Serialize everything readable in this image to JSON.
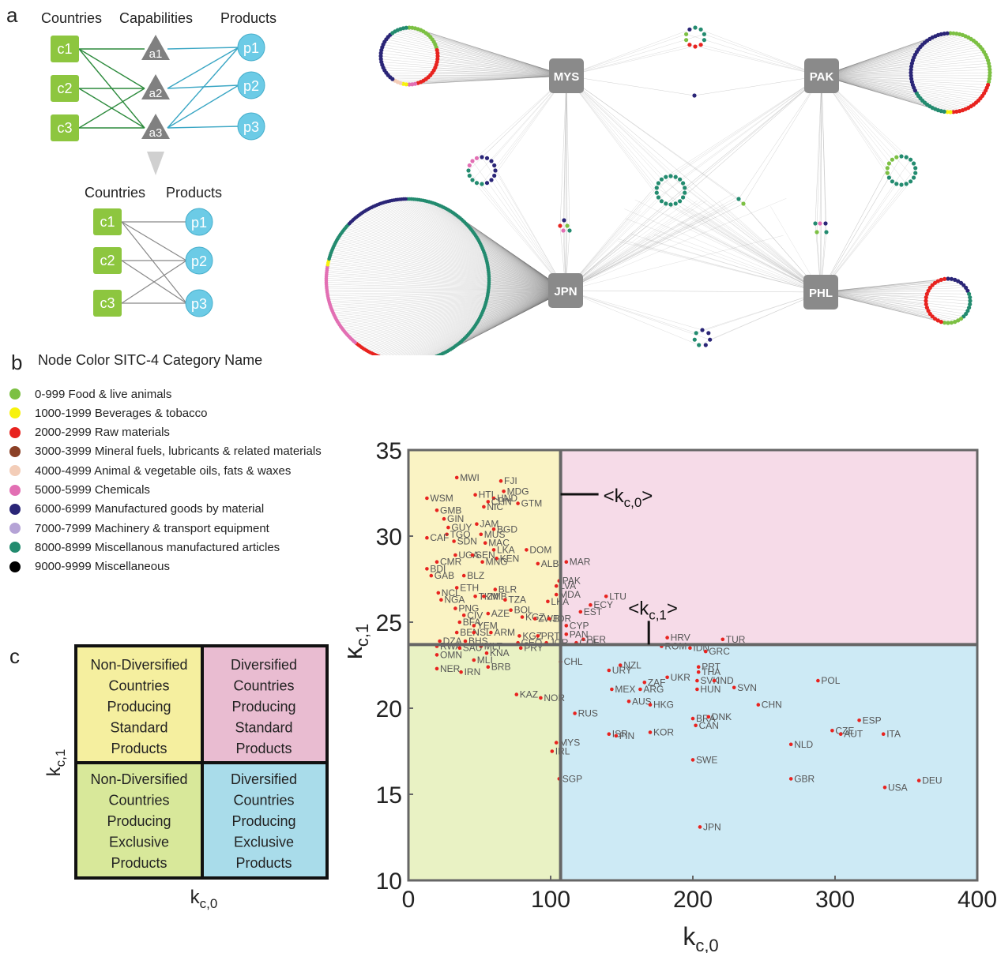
{
  "panel_a": {
    "letter": "a",
    "top_headers": [
      "Countries",
      "Capabilities",
      "Products"
    ],
    "bottom_headers": [
      "Countries",
      "Products"
    ],
    "countries": [
      "c1",
      "c2",
      "c3"
    ],
    "capabilities": [
      "a1",
      "a2",
      "a3"
    ],
    "products": [
      "p1",
      "p2",
      "p3"
    ],
    "country_color": "#8dc63f",
    "capability_color": "#808080",
    "product_color": "#6ccbe6",
    "network_labels": [
      "MYS",
      "PAK",
      "JPN",
      "PHL"
    ]
  },
  "panel_b": {
    "letter": "b",
    "legend_title": "Node Color  SITC-4 Category Name",
    "legend": [
      {
        "color": "#7cc043",
        "label": "0-999 Food & live animals"
      },
      {
        "color": "#f7f20c",
        "label": "1000-1999 Beverages &  tobacco"
      },
      {
        "color": "#e8231f",
        "label": "2000-2999 Raw materials"
      },
      {
        "color": "#8b4026",
        "label": "3000-3999 Mineral fuels, lubricants & related materials"
      },
      {
        "color": "#f3cdb8",
        "label": "4000-4999 Animal & vegetable oils, fats & waxes"
      },
      {
        "color": "#e26fb3",
        "label": "5000-5999 Chemicals"
      },
      {
        "color": "#2a2577",
        "label": "6000-6999 Manufactured goods by material"
      },
      {
        "color": "#b5a3d6",
        "label": "7000-7999 Machinery & transport equipment"
      },
      {
        "color": "#238b6f",
        "label": "8000-8999 Miscellanous manufactured articles"
      },
      {
        "color": "#000000",
        "label": "9000-9999 Miscellaneous"
      }
    ]
  },
  "panel_c": {
    "letter": "c",
    "quadrants": {
      "top_left": [
        "Non-Diversified",
        "Countries",
        "Producing",
        "Standard",
        "Products"
      ],
      "top_right": [
        "Diversified",
        "Countries",
        "Producing",
        "Standard",
        "Products"
      ],
      "bottom_left": [
        "Non-Diversified",
        "Countries",
        "Producing",
        "Exclusive",
        "Products"
      ],
      "bottom_right": [
        "Diversified",
        "Countries",
        "Producing",
        "Exclusive",
        "Products"
      ]
    },
    "colors": {
      "top_left": "#f5ef9f",
      "top_right": "#e9bcd1",
      "bottom_left": "#d8e89a",
      "bottom_right": "#a9dcea"
    },
    "xlabel": "kc,0",
    "ylabel": "kc,1"
  },
  "chart_data": {
    "type": "scatter",
    "xlabel": "kc,0",
    "ylabel": "kc,1",
    "xlim": [
      0,
      400
    ],
    "ylim": [
      10,
      35
    ],
    "xticks": [
      0,
      100,
      200,
      300,
      400
    ],
    "yticks": [
      10,
      15,
      20,
      25,
      30,
      35
    ],
    "mean_kc0": 107,
    "mean_kc1": 23.7,
    "mean_kc0_label": "<kc,0>",
    "mean_kc1_label": "<kc,1>",
    "point_color": "#e8231f",
    "region_colors": {
      "top_left": "#faf3c4",
      "top_right": "#f6dbe8",
      "bottom_left": "#e9f2c4",
      "bottom_right": "#cdeaf5"
    },
    "points": [
      {
        "label": "MWI",
        "x": 34,
        "y": 33.4
      },
      {
        "label": "FJI",
        "x": 65,
        "y": 33.2
      },
      {
        "label": "MDG",
        "x": 67,
        "y": 32.6
      },
      {
        "label": "HTI",
        "x": 47,
        "y": 32.4
      },
      {
        "label": "HND",
        "x": 60,
        "y": 32.2
      },
      {
        "label": "WSM",
        "x": 13,
        "y": 32.2
      },
      {
        "label": "CHN",
        "x": 56,
        "y": 32.0
      },
      {
        "label": "GTM",
        "x": 77,
        "y": 31.9
      },
      {
        "label": "NIC",
        "x": 53,
        "y": 31.7
      },
      {
        "label": "GMB",
        "x": 20,
        "y": 31.5
      },
      {
        "label": "GIN",
        "x": 25,
        "y": 31.0
      },
      {
        "label": "JAM",
        "x": 48,
        "y": 30.7
      },
      {
        "label": "GUY",
        "x": 28,
        "y": 30.5
      },
      {
        "label": "BGD",
        "x": 60,
        "y": 30.4
      },
      {
        "label": "TGO",
        "x": 27,
        "y": 30.1
      },
      {
        "label": "MUS",
        "x": 51,
        "y": 30.1
      },
      {
        "label": "CAF",
        "x": 13,
        "y": 29.9
      },
      {
        "label": "SDN",
        "x": 32,
        "y": 29.7
      },
      {
        "label": "MAC",
        "x": 54,
        "y": 29.6
      },
      {
        "label": "LKA",
        "x": 60,
        "y": 29.2
      },
      {
        "label": "DOM",
        "x": 83,
        "y": 29.2
      },
      {
        "label": "UGA",
        "x": 33,
        "y": 28.9
      },
      {
        "label": "SEN",
        "x": 45,
        "y": 28.9
      },
      {
        "label": "KEN",
        "x": 62,
        "y": 28.7
      },
      {
        "label": "CMR",
        "x": 20,
        "y": 28.5
      },
      {
        "label": "MNG",
        "x": 52,
        "y": 28.5
      },
      {
        "label": "ALB",
        "x": 91,
        "y": 28.4
      },
      {
        "label": "MAR",
        "x": 111,
        "y": 28.5
      },
      {
        "label": "BDI",
        "x": 13,
        "y": 28.1
      },
      {
        "label": "GAB",
        "x": 16,
        "y": 27.7
      },
      {
        "label": "BLZ",
        "x": 39,
        "y": 27.7
      },
      {
        "label": "PAK",
        "x": 106,
        "y": 27.4
      },
      {
        "label": "LVA",
        "x": 104,
        "y": 27.1
      },
      {
        "label": "ETH",
        "x": 34,
        "y": 27.0
      },
      {
        "label": "BLR",
        "x": 61,
        "y": 26.9
      },
      {
        "label": "NCL",
        "x": 21,
        "y": 26.7
      },
      {
        "label": "TKM",
        "x": 47,
        "y": 26.5
      },
      {
        "label": "ZMB",
        "x": 53,
        "y": 26.5
      },
      {
        "label": "MDA",
        "x": 104,
        "y": 26.6
      },
      {
        "label": "LTU",
        "x": 139,
        "y": 26.5
      },
      {
        "label": "NGA",
        "x": 23,
        "y": 26.3
      },
      {
        "label": "TZA",
        "x": 68,
        "y": 26.3
      },
      {
        "label": "LKA",
        "x": 98,
        "y": 26.2
      },
      {
        "label": "ECY",
        "x": 128,
        "y": 26.0
      },
      {
        "label": "PNG",
        "x": 33,
        "y": 25.8
      },
      {
        "label": "BOL",
        "x": 72,
        "y": 25.7
      },
      {
        "label": "EST",
        "x": 121,
        "y": 25.6
      },
      {
        "label": "AZE",
        "x": 56,
        "y": 25.5
      },
      {
        "label": "CIV",
        "x": 39,
        "y": 25.4
      },
      {
        "label": "KGZ",
        "x": 80,
        "y": 25.3
      },
      {
        "label": "ZWE",
        "x": 89,
        "y": 25.2
      },
      {
        "label": "JOR",
        "x": 99,
        "y": 25.2
      },
      {
        "label": "BFA",
        "x": 36,
        "y": 25.0
      },
      {
        "label": "CYP",
        "x": 111,
        "y": 24.8
      },
      {
        "label": "YEM",
        "x": 46,
        "y": 24.8
      },
      {
        "label": "BEN",
        "x": 34,
        "y": 24.4
      },
      {
        "label": "ISL",
        "x": 46,
        "y": 24.4
      },
      {
        "label": "ARM",
        "x": 58,
        "y": 24.4
      },
      {
        "label": "PAN",
        "x": 111,
        "y": 24.3
      },
      {
        "label": "KGZ",
        "x": 78,
        "y": 24.2
      },
      {
        "label": "PRT",
        "x": 91,
        "y": 24.2
      },
      {
        "label": "DZA",
        "x": 22,
        "y": 23.9
      },
      {
        "label": "BHS",
        "x": 40,
        "y": 23.9
      },
      {
        "label": "GEO",
        "x": 77,
        "y": 23.8
      },
      {
        "label": "JOR",
        "x": 97,
        "y": 23.8
      },
      {
        "label": "PER",
        "x": 123,
        "y": 24.0
      },
      {
        "label": "HRV",
        "x": 182,
        "y": 24.1
      },
      {
        "label": "TUR",
        "x": 221,
        "y": 24.0
      },
      {
        "label": "COL",
        "x": 118,
        "y": 23.8
      },
      {
        "label": "MLT",
        "x": 51,
        "y": 23.6
      },
      {
        "label": "PRY",
        "x": 79,
        "y": 23.5
      },
      {
        "label": "ROM",
        "x": 178,
        "y": 23.6
      },
      {
        "label": "IDN",
        "x": 198,
        "y": 23.5
      },
      {
        "label": "GRC",
        "x": 209,
        "y": 23.3
      },
      {
        "label": "RWA",
        "x": 20,
        "y": 23.6
      },
      {
        "label": "SAU",
        "x": 36,
        "y": 23.5
      },
      {
        "label": "OMN",
        "x": 20,
        "y": 23.1
      },
      {
        "label": "KNA",
        "x": 55,
        "y": 23.2
      },
      {
        "label": "MLI",
        "x": 46,
        "y": 22.8
      },
      {
        "label": "CHL",
        "x": 107,
        "y": 22.7
      },
      {
        "label": "NER",
        "x": 20,
        "y": 22.3
      },
      {
        "label": "IRN",
        "x": 37,
        "y": 22.1
      },
      {
        "label": "BRB",
        "x": 56,
        "y": 22.4
      },
      {
        "label": "NZL",
        "x": 149,
        "y": 22.5
      },
      {
        "label": "PRT",
        "x": 204,
        "y": 22.4
      },
      {
        "label": "THA",
        "x": 204,
        "y": 22.1
      },
      {
        "label": "URY",
        "x": 141,
        "y": 22.2
      },
      {
        "label": "UKR",
        "x": 182,
        "y": 21.8
      },
      {
        "label": "ZAF",
        "x": 166,
        "y": 21.5
      },
      {
        "label": "SVK",
        "x": 203,
        "y": 21.6
      },
      {
        "label": "IND",
        "x": 215,
        "y": 21.6
      },
      {
        "label": "POL",
        "x": 288,
        "y": 21.6
      },
      {
        "label": "MEX",
        "x": 143,
        "y": 21.1
      },
      {
        "label": "ARG",
        "x": 163,
        "y": 21.1
      },
      {
        "label": "HUN",
        "x": 203,
        "y": 21.1
      },
      {
        "label": "SVN",
        "x": 229,
        "y": 21.2
      },
      {
        "label": "KAZ",
        "x": 76,
        "y": 20.8
      },
      {
        "label": "NOR",
        "x": 93,
        "y": 20.6
      },
      {
        "label": "AUS",
        "x": 155,
        "y": 20.4
      },
      {
        "label": "HKG",
        "x": 170,
        "y": 20.2
      },
      {
        "label": "CHN",
        "x": 246,
        "y": 20.2
      },
      {
        "label": "RUS",
        "x": 117,
        "y": 19.7
      },
      {
        "label": "BRA",
        "x": 200,
        "y": 19.4
      },
      {
        "label": "DNK",
        "x": 211,
        "y": 19.5
      },
      {
        "label": "ESP",
        "x": 317,
        "y": 19.3
      },
      {
        "label": "CZE",
        "x": 298,
        "y": 18.7
      },
      {
        "label": "CAN",
        "x": 202,
        "y": 19.0
      },
      {
        "label": "ISR",
        "x": 141,
        "y": 18.5
      },
      {
        "label": "FIN",
        "x": 146,
        "y": 18.4
      },
      {
        "label": "KOR",
        "x": 170,
        "y": 18.6
      },
      {
        "label": "AUT",
        "x": 304,
        "y": 18.5
      },
      {
        "label": "ITA",
        "x": 334,
        "y": 18.5
      },
      {
        "label": "MYS",
        "x": 104,
        "y": 18.0
      },
      {
        "label": "NLD",
        "x": 269,
        "y": 17.9
      },
      {
        "label": "IRL",
        "x": 101,
        "y": 17.5
      },
      {
        "label": "SWE",
        "x": 200,
        "y": 17.0
      },
      {
        "label": "SGP",
        "x": 106,
        "y": 15.9
      },
      {
        "label": "GBR",
        "x": 269,
        "y": 15.9
      },
      {
        "label": "DEU",
        "x": 359,
        "y": 15.8
      },
      {
        "label": "USA",
        "x": 335,
        "y": 15.4
      },
      {
        "label": "JPN",
        "x": 205,
        "y": 13.1
      }
    ]
  }
}
